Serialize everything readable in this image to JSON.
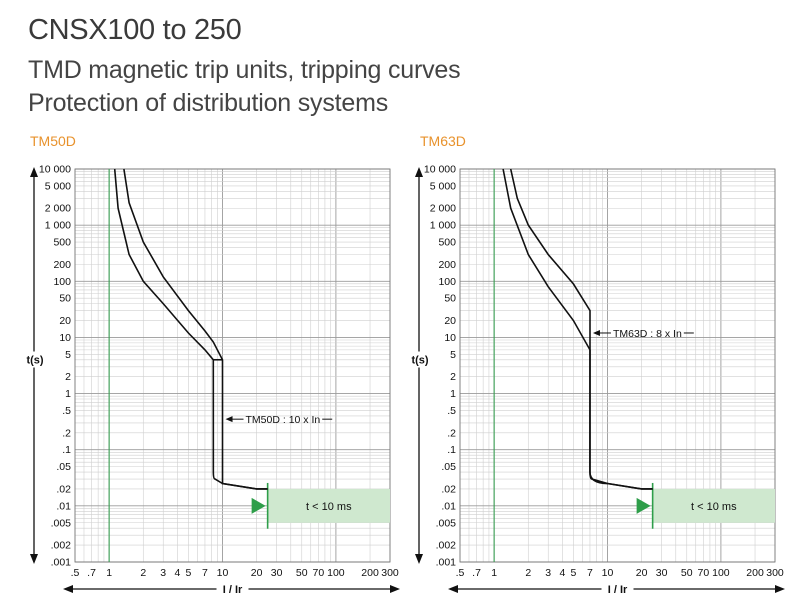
{
  "header": {
    "title": "CNSX100 to 250",
    "subtitle_1": "TMD magnetic trip units, tripping curves",
    "subtitle_2": "Protection of distribution systems"
  },
  "colors": {
    "accent_title": "#e8922c",
    "curve": "#111111",
    "band_fill": "#cfe8cf",
    "green_marker": "#2e9e4a",
    "grid_major": "#9a9a9a",
    "grid_minor": "#cfcfcf"
  },
  "chart_data": [
    {
      "type": "line",
      "title": "TM50D",
      "xlabel": "I / Ir",
      "ylabel": "t(s)",
      "x_scale": "log",
      "y_scale": "log",
      "xlim": [
        0.5,
        300
      ],
      "ylim": [
        0.001,
        10000
      ],
      "x_ticks": [
        0.5,
        0.7,
        1,
        2,
        3,
        4,
        5,
        7,
        10,
        20,
        30,
        50,
        70,
        100,
        200,
        300
      ],
      "x_tick_labels": [
        ".5",
        ".7",
        "1",
        "2",
        "3",
        "4",
        "5",
        "7",
        "10",
        "20",
        "30",
        "50",
        "70",
        "100",
        "200",
        "300"
      ],
      "y_ticks": [
        0.001,
        0.002,
        0.005,
        0.01,
        0.02,
        0.05,
        0.1,
        0.2,
        0.5,
        1,
        2,
        5,
        10,
        20,
        50,
        100,
        200,
        500,
        1000,
        2000,
        5000,
        10000
      ],
      "y_tick_labels": [
        ".001",
        ".002",
        ".005",
        ".01",
        ".02",
        ".05",
        ".1",
        ".2",
        ".5",
        "1",
        "2",
        "5",
        "10",
        "20",
        "50",
        "100",
        "200",
        "500",
        "1 000",
        "2 000",
        "5 000",
        "10 000"
      ],
      "reference_line_x": 1,
      "series": [
        {
          "points": [
            [
              1.12,
              10000
            ],
            [
              1.2,
              2000
            ],
            [
              1.5,
              300
            ],
            [
              2,
              100
            ],
            [
              3,
              40
            ],
            [
              5,
              12
            ],
            [
              7,
              6
            ],
            [
              8.3,
              4
            ]
          ]
        },
        {
          "points": [
            [
              1.35,
              10000
            ],
            [
              1.5,
              2500
            ],
            [
              2,
              500
            ],
            [
              3,
              120
            ],
            [
              5,
              30
            ],
            [
              7,
              13
            ],
            [
              8.3,
              8.3
            ],
            [
              10,
              4
            ]
          ]
        }
      ],
      "magnetic": {
        "x_low": 8.3,
        "x_high": 10,
        "t_low": 0.8,
        "t_high": 4,
        "instant_t": 0.04,
        "tail": [
          [
            8.6,
            0.03
          ],
          [
            10,
            0.025
          ],
          [
            20,
            0.02
          ],
          [
            25,
            0.02
          ]
        ]
      },
      "annotation": {
        "text": "TM50D : 10 x In",
        "x": 10,
        "y": 0.35
      },
      "band": {
        "text": "t < 10 ms",
        "x_start": 25,
        "x_end": 300,
        "t_low": 0.005,
        "t_high": 0.02
      }
    },
    {
      "type": "line",
      "title": "TM63D",
      "xlabel": "I / Ir",
      "ylabel": "t(s)",
      "x_scale": "log",
      "y_scale": "log",
      "xlim": [
        0.5,
        300
      ],
      "ylim": [
        0.001,
        10000
      ],
      "x_ticks": [
        0.5,
        0.7,
        1,
        2,
        3,
        4,
        5,
        7,
        10,
        20,
        30,
        50,
        70,
        100,
        200,
        300
      ],
      "x_tick_labels": [
        ".5",
        ".7",
        "1",
        "2",
        "3",
        "4",
        "5",
        "7",
        "10",
        "20",
        "30",
        "50",
        "70",
        "100",
        "200",
        "300"
      ],
      "y_ticks": [
        0.001,
        0.002,
        0.005,
        0.01,
        0.02,
        0.05,
        0.1,
        0.2,
        0.5,
        1,
        2,
        5,
        10,
        20,
        50,
        100,
        200,
        500,
        1000,
        2000,
        5000,
        10000
      ],
      "y_tick_labels": [
        ".001",
        ".002",
        ".005",
        ".01",
        ".02",
        ".05",
        ".1",
        ".2",
        ".5",
        "1",
        "2",
        "5",
        "10",
        "20",
        "50",
        "100",
        "200",
        "500",
        "1 000",
        "2 000",
        "5 000",
        "10 000"
      ],
      "reference_line_x": 1,
      "series": [
        {
          "points": [
            [
              1.2,
              10000
            ],
            [
              1.4,
              2000
            ],
            [
              2,
              300
            ],
            [
              3,
              80
            ],
            [
              5,
              20
            ],
            [
              7,
              6
            ]
          ]
        },
        {
          "points": [
            [
              1.4,
              10000
            ],
            [
              1.6,
              3000
            ],
            [
              2,
              1000
            ],
            [
              3,
              300
            ],
            [
              5,
              90
            ],
            [
              7,
              30
            ]
          ]
        }
      ],
      "magnetic": {
        "x_low": 7,
        "x_high": 7,
        "t_low": 6,
        "t_high": 30,
        "instant_t": 0.04,
        "tail": [
          [
            7.3,
            0.03
          ],
          [
            10,
            0.025
          ],
          [
            20,
            0.02
          ],
          [
            25,
            0.02
          ]
        ]
      },
      "annotation": {
        "text": "TM63D : 8 x In",
        "x": 7,
        "y": 12
      },
      "band": {
        "text": "t < 10 ms",
        "x_start": 25,
        "x_end": 300,
        "t_low": 0.005,
        "t_high": 0.02
      }
    }
  ]
}
